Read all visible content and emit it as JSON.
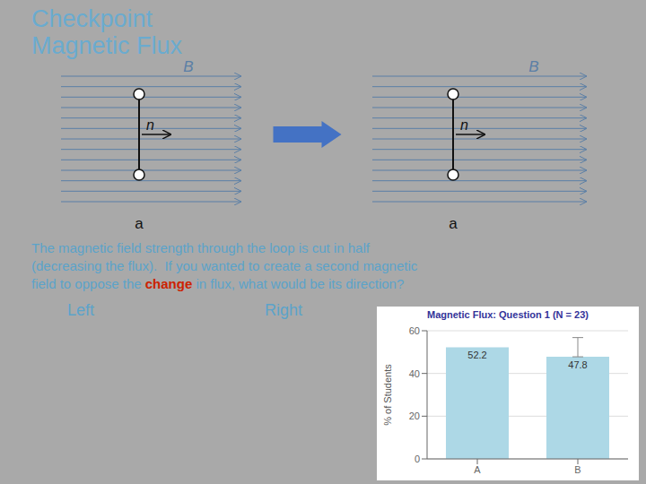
{
  "chart_data": {
    "type": "bar",
    "title": "Magnetic Flux: Question 1 (N = 23)",
    "categories": [
      "A",
      "B"
    ],
    "values": [
      52.2,
      47.8
    ],
    "errors": [
      null,
      [
        0,
        9
      ]
    ],
    "color": "#add8e6",
    "ylabel": "% of Students",
    "ylim": [
      0,
      60
    ],
    "yticks": [
      0,
      20,
      40,
      60
    ],
    "grid": true,
    "data_labels": true,
    "annotations": [
      "Checkpoint",
      "Magnetic Flux",
      "The magnetic field strength through the loop is cut in half",
      "(decreasing the flux).  If you wanted to create a second magnetic",
      "field to oppose the",
      "change",
      "in flux, what would be its direction?",
      "Left",
      "Right",
      "B",
      "a",
      "n",
      "B",
      "a",
      "n"
    ]
  }
}
